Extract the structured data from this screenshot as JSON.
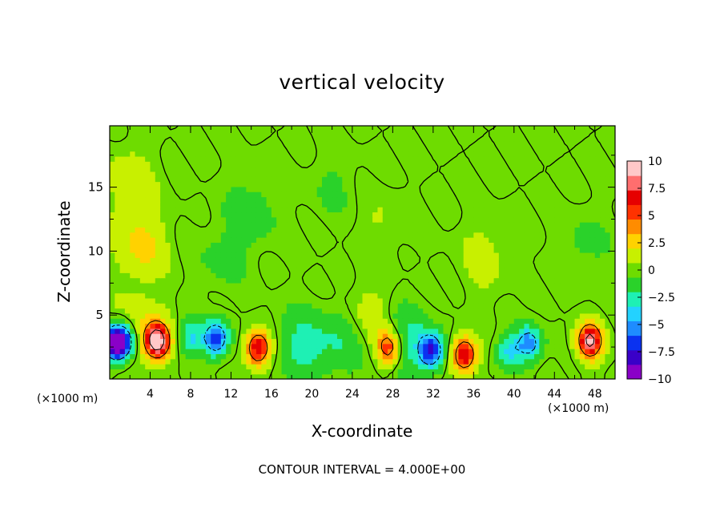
{
  "chart_data": {
    "type": "heatmap",
    "title": "vertical velocity",
    "xlabel": "X-coordinate",
    "ylabel": "Z-coordinate",
    "x_unit_label": "(×1000 m)",
    "footer": "CONTOUR INTERVAL = 4.000E+00",
    "xlim": [
      0,
      50
    ],
    "ylim": [
      0,
      19.8
    ],
    "x_ticks": [
      4,
      8,
      12,
      16,
      20,
      24,
      28,
      32,
      36,
      40,
      44,
      48
    ],
    "y_ticks": [
      5,
      10,
      15
    ],
    "colorbar": {
      "ticks": [
        "10",
        "7.5",
        "5",
        "2.5",
        "0",
        "−2.5",
        "−5",
        "−7.5",
        "−10"
      ],
      "range": [
        -10,
        10
      ],
      "colors": [
        "#8a00c8",
        "#3a00c8",
        "#0a32f0",
        "#1e8cff",
        "#23d2ff",
        "#1ef0b4",
        "#2ad22a",
        "#6edc00",
        "#c8f000",
        "#ffd200",
        "#ff8c00",
        "#ff3200",
        "#e60000",
        "#ff6e6e",
        "#ffc8c8"
      ]
    },
    "field_features": [
      {
        "x": 0.5,
        "z": 2.8,
        "w": -9
      },
      {
        "x": 1.4,
        "z": 3.0,
        "w": -6
      },
      {
        "x": 3.0,
        "z": 3.8,
        "w": 2
      },
      {
        "x": 4.7,
        "z": 3.0,
        "w": 10
      },
      {
        "x": 8.0,
        "z": 3.2,
        "w": -3.5
      },
      {
        "x": 10.5,
        "z": 3.2,
        "w": -7
      },
      {
        "x": 14.7,
        "z": 2.4,
        "w": 7.5
      },
      {
        "x": 19.0,
        "z": 2.6,
        "w": -2.5
      },
      {
        "x": 23.0,
        "z": 3.0,
        "w": -2
      },
      {
        "x": 25.5,
        "z": 4.8,
        "w": 1.5
      },
      {
        "x": 27.6,
        "z": 2.5,
        "w": 6
      },
      {
        "x": 29.5,
        "z": 3.0,
        "w": -2.5
      },
      {
        "x": 31.8,
        "z": 2.2,
        "w": -7
      },
      {
        "x": 35.1,
        "z": 1.9,
        "w": 7.5
      },
      {
        "x": 39.5,
        "z": 2.2,
        "w": -3.5
      },
      {
        "x": 41.5,
        "z": 2.8,
        "w": -5.5
      },
      {
        "x": 47.5,
        "z": 3.0,
        "w": 9
      },
      {
        "x": 3.0,
        "z": 10.5,
        "w": 2.5
      },
      {
        "x": 2.0,
        "z": 15.5,
        "w": 1.5
      },
      {
        "x": 14.0,
        "z": 13.0,
        "w": -1.5
      },
      {
        "x": 11.0,
        "z": 9.5,
        "w": -1
      },
      {
        "x": 22.0,
        "z": 15.0,
        "w": -0.8
      },
      {
        "x": 27.0,
        "z": 12.0,
        "w": 0.8
      },
      {
        "x": 37.0,
        "z": 9.5,
        "w": 1.2
      },
      {
        "x": 47.0,
        "z": 10.5,
        "w": -1
      }
    ]
  }
}
